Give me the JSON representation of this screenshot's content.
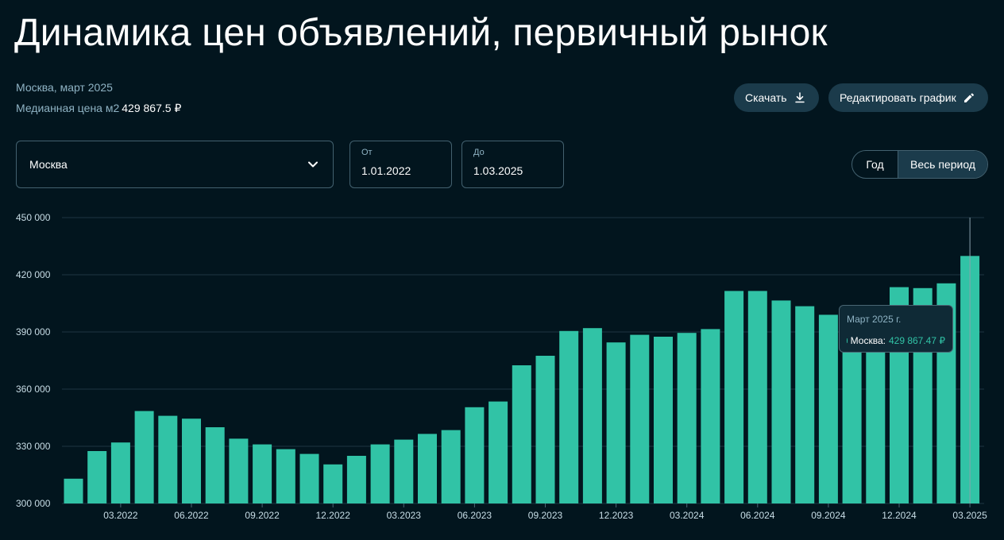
{
  "header": {
    "title": "Динамика цен объявлений, первичный рынок",
    "subtitle": "Москва, март 2025",
    "median_label": "Медианная цена м2",
    "median_value": "429 867.5 ₽"
  },
  "toolbar": {
    "download_label": "Скачать",
    "edit_label": "Редактировать график",
    "download_icon": "download-icon",
    "edit_icon": "pencil-icon"
  },
  "filters": {
    "city": "Москва",
    "from_label": "От",
    "from_value": "1.01.2022",
    "to_label": "До",
    "to_value": "1.03.2025",
    "period_year": "Год",
    "period_all": "Весь период",
    "period_selected": "Весь период"
  },
  "tooltip": {
    "title": "Март 2025 г.",
    "series": "Москва:",
    "value": "429 867.47 ₽"
  },
  "colors": {
    "background": "#02151e",
    "bar": "#31c3a6",
    "grid": "#1e3542",
    "muted": "#8fb3c4",
    "button": "#1b3b4b"
  },
  "chart_data": {
    "type": "bar",
    "categories": [
      "01.2022",
      "02.2022",
      "03.2022",
      "04.2022",
      "05.2022",
      "06.2022",
      "07.2022",
      "08.2022",
      "09.2022",
      "10.2022",
      "11.2022",
      "12.2022",
      "01.2023",
      "02.2023",
      "03.2023",
      "04.2023",
      "05.2023",
      "06.2023",
      "07.2023",
      "08.2023",
      "09.2023",
      "10.2023",
      "11.2023",
      "12.2023",
      "01.2024",
      "02.2024",
      "03.2024",
      "04.2024",
      "05.2024",
      "06.2024",
      "07.2024",
      "08.2024",
      "09.2024",
      "10.2024",
      "11.2024",
      "12.2024",
      "01.2025",
      "02.2025",
      "03.2025"
    ],
    "series": [
      {
        "name": "Москва",
        "values": [
          313000,
          327500,
          332000,
          348500,
          346000,
          344500,
          340000,
          334000,
          331000,
          328500,
          326000,
          320500,
          325000,
          331000,
          333500,
          336500,
          338500,
          350500,
          353500,
          372500,
          377500,
          390500,
          392000,
          384500,
          388500,
          387500,
          389500,
          391500,
          411500,
          411500,
          406500,
          403500,
          399000,
          393000,
          396000,
          413500,
          413000,
          415500,
          429867.47
        ]
      }
    ],
    "xticks": [
      "03.2022",
      "06.2022",
      "09.2022",
      "12.2022",
      "03.2023",
      "06.2023",
      "09.2023",
      "12.2023",
      "03.2024",
      "06.2024",
      "09.2024",
      "12.2024",
      "03.2025"
    ],
    "yticks": [
      "300 000",
      "330 000",
      "360 000",
      "390 000",
      "420 000",
      "450 000"
    ],
    "ylim": [
      300000,
      450000
    ],
    "grid": true,
    "highlighted": "03.2025",
    "title": "",
    "xlabel": "",
    "ylabel": ""
  }
}
